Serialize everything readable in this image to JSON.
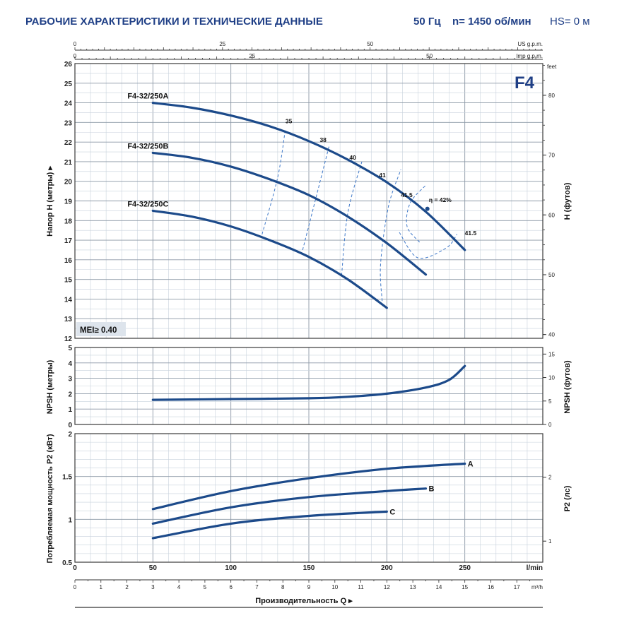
{
  "header": {
    "title": "РАБОЧИЕ ХАРАКТЕРИСТИКИ И ТЕХНИЧЕСКИЕ ДАННЫЕ",
    "freq": "50 Гц",
    "speed": "n= 1450 об/мин",
    "hs": "HS= 0 м"
  },
  "colors": {
    "curve": "#1c4a8a",
    "iso": "#3f79c9",
    "title": "#1f3f86",
    "badge": "#dde4ec"
  },
  "chart_data": [
    {
      "type": "line",
      "title": "F4",
      "ylabel": "Напор H (метры)",
      "ylabel_right": "H (футов)",
      "xlim": [
        0,
        300
      ],
      "ylim": [
        12,
        26
      ],
      "yticks": [
        12,
        13,
        14,
        15,
        16,
        17,
        18,
        19,
        20,
        21,
        22,
        23,
        24,
        25,
        26
      ],
      "yticks_right": [
        40,
        50,
        60,
        70,
        80
      ],
      "right_unit": "feet",
      "badge": "MEI≥ 0.40",
      "series": [
        {
          "name": "F4-32/250A",
          "x": [
            50,
            75,
            100,
            125,
            150,
            175,
            200,
            225,
            250
          ],
          "y": [
            24.0,
            23.75,
            23.35,
            22.8,
            22.05,
            21.1,
            19.95,
            18.45,
            16.5
          ]
        },
        {
          "name": "F4-32/250B",
          "x": [
            50,
            75,
            100,
            125,
            150,
            175,
            200,
            225
          ],
          "y": [
            21.45,
            21.2,
            20.75,
            20.1,
            19.3,
            18.2,
            16.85,
            15.25
          ]
        },
        {
          "name": "F4-32/250C",
          "x": [
            50,
            75,
            100,
            125,
            150,
            175,
            200
          ],
          "y": [
            18.5,
            18.2,
            17.7,
            17.0,
            16.15,
            15.0,
            13.55
          ]
        }
      ],
      "efficiency": {
        "labels": [
          "35",
          "38",
          "40",
          "41",
          "41.5",
          "η = 42%",
          "41.5"
        ],
        "iso_lines": [
          {
            "x": [
              120,
              130,
              135
            ],
            "y": [
              17.3,
              20.2,
              22.7
            ]
          },
          {
            "x": [
              146,
              155,
              163
            ],
            "y": [
              16.5,
              19.3,
              21.8
            ]
          },
          {
            "x": [
              171,
              175,
              184
            ],
            "y": [
              15.2,
              18.4,
              21.0
            ]
          },
          {
            "x": [
              197,
              196,
              201,
              209
            ],
            "y": [
              13.9,
              15.8,
              18.7,
              20.6
            ]
          },
          {
            "x": [
              221,
              213,
              215,
              225
            ],
            "y": [
              16.9,
              17.7,
              18.9,
              19.8
            ]
          },
          {
            "x": [
              208,
              220,
              238,
              245
            ],
            "y": [
              17.4,
              16.1,
              16.6,
              17.3
            ]
          }
        ],
        "bep": {
          "x": 226,
          "y": 18.6
        }
      }
    },
    {
      "type": "line",
      "ylabel": "NPSH (метры)",
      "ylabel_right": "NPSH (футов)",
      "ylim": [
        0,
        5
      ],
      "yticks": [
        0,
        1,
        2,
        3,
        4,
        5
      ],
      "yticks_right": [
        0,
        5,
        10,
        15
      ],
      "series": [
        {
          "name": "NPSH",
          "x": [
            50,
            100,
            150,
            175,
            200,
            225,
            240,
            250
          ],
          "y": [
            1.6,
            1.65,
            1.7,
            1.8,
            2.0,
            2.4,
            2.9,
            3.8
          ]
        }
      ]
    },
    {
      "type": "line",
      "ylabel": "Потребляемая мощность P2 (кВт)",
      "ylabel_right": "P2 (лс)",
      "xlabel": "Производительность Q",
      "ylim": [
        0.5,
        2
      ],
      "yticks": [
        0.5,
        1,
        1.5,
        2
      ],
      "yticks_right": [
        1,
        2
      ],
      "series": [
        {
          "name": "A",
          "x": [
            50,
            100,
            150,
            200,
            250
          ],
          "y": [
            1.12,
            1.33,
            1.48,
            1.59,
            1.65
          ]
        },
        {
          "name": "B",
          "x": [
            50,
            100,
            150,
            200,
            225
          ],
          "y": [
            0.95,
            1.14,
            1.26,
            1.33,
            1.36
          ]
        },
        {
          "name": "C",
          "x": [
            50,
            100,
            150,
            200
          ],
          "y": [
            0.78,
            0.95,
            1.04,
            1.09
          ]
        }
      ]
    }
  ],
  "axes": {
    "lmin_label": "l/min",
    "lmin_ticks": [
      "0",
      "50",
      "100",
      "150",
      "200",
      "250"
    ],
    "m3h_label": "m³/h",
    "m3h_ticks": [
      "0",
      "1",
      "2",
      "3",
      "4",
      "5",
      "6",
      "7",
      "8",
      "9",
      "10",
      "11",
      "12",
      "13",
      "14",
      "15",
      "16",
      "17"
    ],
    "usgpm_label": "US g.p.m.",
    "usgpm_ticks": [
      "0",
      "25",
      "50"
    ],
    "impgpm_label": "Imp g.p.m.",
    "impgpm_ticks": [
      "0",
      "25",
      "50"
    ]
  }
}
